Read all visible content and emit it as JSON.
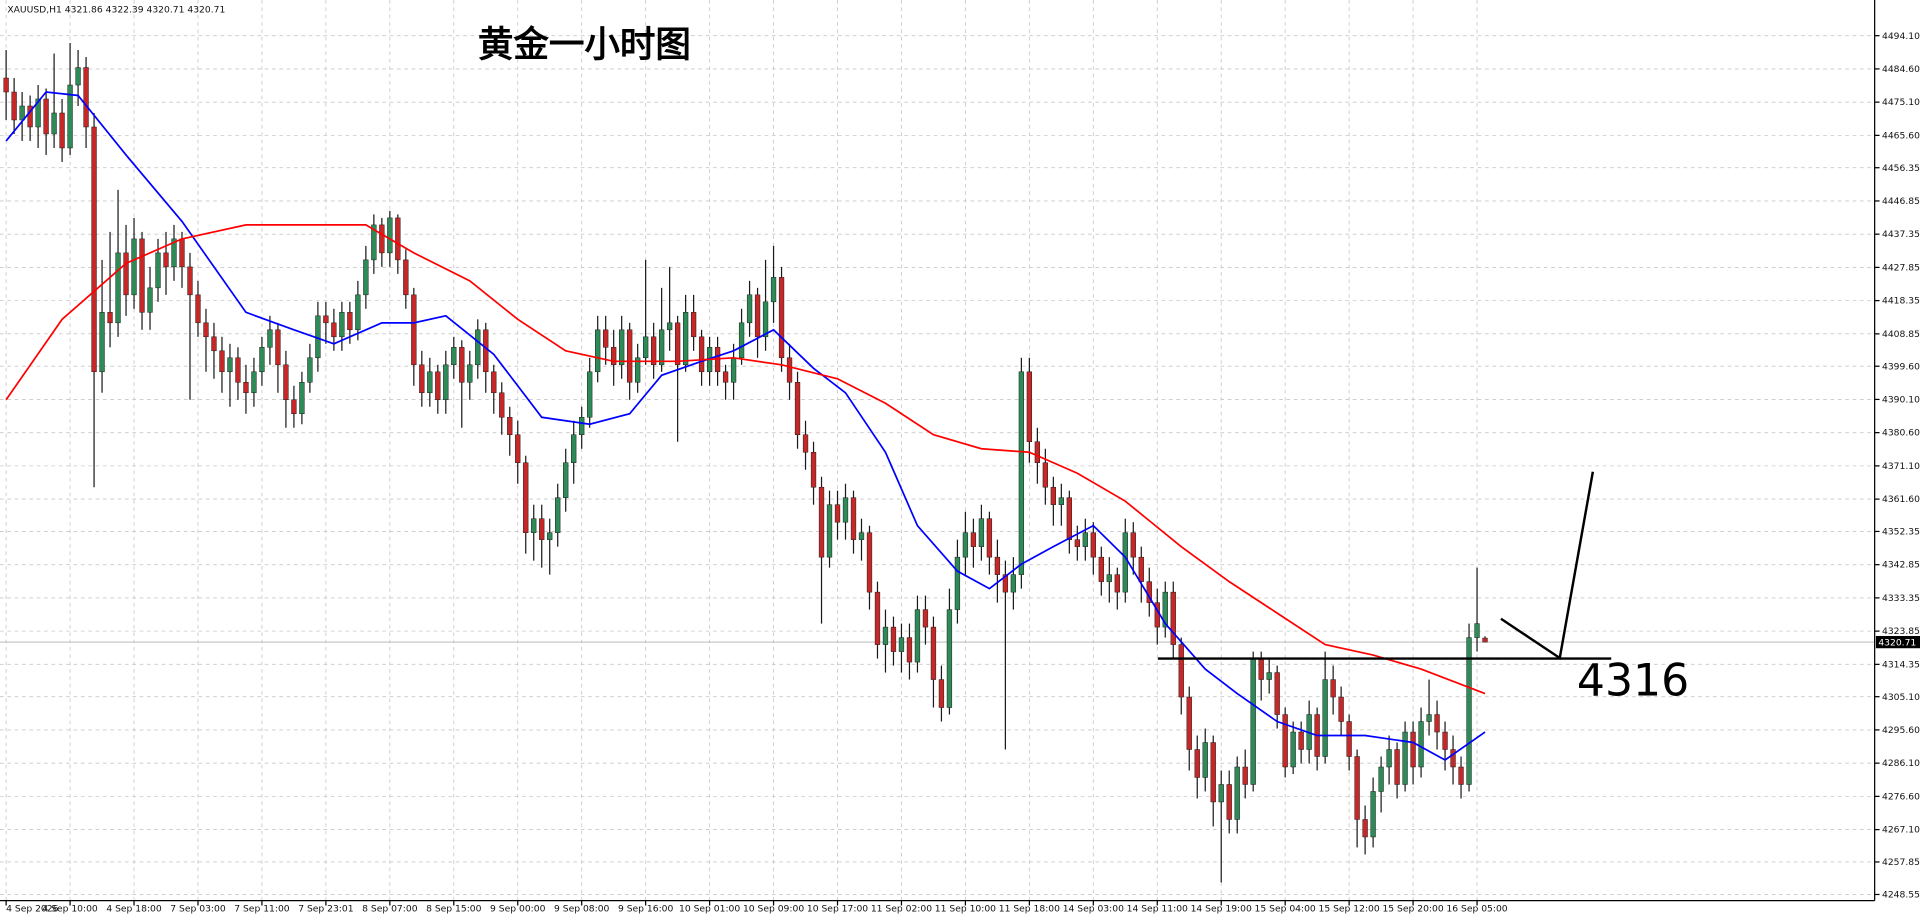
{
  "chart_data": {
    "type": "candlestick",
    "symbol": "XAUUSD,H1",
    "title": "黄金一小时图",
    "up_color": "#2e8b57",
    "down_color": "#c62828",
    "wick_color": "#1a1a1a",
    "grid": true,
    "ylim": [
      4246.8,
      4504.3
    ],
    "yticks": [
      {
        "value": 4494.1,
        "label": "4494.10"
      },
      {
        "value": 4484.6,
        "label": "4484.60"
      },
      {
        "value": 4475.1,
        "label": "4475.10"
      },
      {
        "value": 4465.6,
        "label": "4465.60"
      },
      4456.35,
      4446.85,
      4437.35,
      4427.85,
      4418.35,
      4408.85,
      {
        "value": 4399.6,
        "label": "4399.60"
      },
      {
        "value": 4390.1,
        "label": "4390.10"
      },
      {
        "value": 4380.6,
        "label": "4380.60"
      },
      {
        "value": 4371.1,
        "label": "4371.10"
      },
      {
        "value": 4361.6,
        "label": "4361.60"
      },
      4352.35,
      4342.85,
      4333.35,
      4323.85,
      4314.35,
      {
        "value": 4305.1,
        "label": "4305.10"
      },
      {
        "value": 4295.6,
        "label": "4295.60"
      },
      {
        "value": 4286.1,
        "label": "4286.10"
      },
      {
        "value": 4276.6,
        "label": "4276.60"
      },
      {
        "value": 4267.1,
        "label": "4267.10"
      },
      4257.85,
      4248.55
    ],
    "xticks": [
      {
        "value": 0,
        "label": "4 Sep 2026"
      },
      {
        "value": 8,
        "label": "4 Sep 10:00"
      },
      {
        "value": 16,
        "label": "4 Sep 18:00"
      },
      {
        "value": 24,
        "label": "7 Sep 03:00"
      },
      {
        "value": 32,
        "label": "7 Sep 11:00"
      },
      {
        "value": 40,
        "label": "7 Sep 23:01"
      },
      {
        "value": 48,
        "label": "8 Sep 07:00"
      },
      {
        "value": 56,
        "label": "8 Sep 15:00"
      },
      {
        "value": 64,
        "label": "9 Sep 00:00"
      },
      {
        "value": 72,
        "label": "9 Sep 08:00"
      },
      {
        "value": 80,
        "label": "9 Sep 16:00"
      },
      {
        "value": 88,
        "label": "10 Sep 01:00"
      },
      {
        "value": 96,
        "label": "10 Sep 09:00"
      },
      {
        "value": 104,
        "label": "10 Sep 17:00"
      },
      {
        "value": 112,
        "label": "11 Sep 02:00"
      },
      {
        "value": 120,
        "label": "11 Sep 10:00"
      },
      {
        "value": 128,
        "label": "11 Sep 18:00"
      },
      {
        "value": 136,
        "label": "14 Sep 03:00"
      },
      {
        "value": 144,
        "label": "14 Sep 11:00"
      },
      {
        "value": 152,
        "label": "14 Sep 19:00"
      },
      {
        "value": 160,
        "label": "15 Sep 04:00"
      },
      {
        "value": 168,
        "label": "15 Sep 12:00"
      },
      {
        "value": 176,
        "label": "15 Sep 20:00"
      },
      {
        "value": 184,
        "label": "16 Sep 05:00"
      }
    ],
    "candles": {
      "open": [
        4482,
        4478,
        4470,
        4474,
        4468,
        4476,
        4466,
        4472,
        4462,
        4480,
        4485,
        4468,
        4398,
        4415,
        4412,
        4432,
        4420,
        4436,
        4415,
        4422,
        4432,
        4428,
        4436,
        4428,
        4420,
        4412,
        4408,
        4404,
        4398,
        4402,
        4395,
        4392,
        4398,
        4405,
        4410,
        4400,
        4390,
        4386,
        4395,
        4402,
        4414,
        4412,
        4408,
        4415,
        4410,
        4420,
        4430,
        4440,
        4432,
        4442,
        4430,
        4420,
        4400,
        4392,
        4398,
        4390,
        4400,
        4405,
        4395,
        4400,
        4410,
        4398,
        4392,
        4385,
        4380,
        4372,
        4352,
        4356,
        4350,
        4352,
        4362,
        4372,
        4380,
        4385,
        4398,
        4410,
        4405,
        4400,
        4410,
        4395,
        4402,
        4408,
        4400,
        4410,
        4412,
        4400,
        4415,
        4408,
        4398,
        4405,
        4398,
        4395,
        4402,
        4412,
        4420,
        4408,
        4418,
        4425,
        4402,
        4395,
        4380,
        4375,
        4365,
        4345,
        4360,
        4355,
        4362,
        4350,
        4352,
        4335,
        4320,
        4325,
        4318,
        4322,
        4315,
        4330,
        4325,
        4310,
        4302,
        4330,
        4345,
        4352,
        4348,
        4356,
        4345,
        4340,
        4335,
        4340,
        4398,
        4378,
        4372,
        4365,
        4360,
        4362,
        4350,
        4348,
        4352,
        4345,
        4338,
        4340,
        4335,
        4352,
        4345,
        4338,
        4332,
        4325,
        4335,
        4320,
        4305,
        4290,
        4282,
        4292,
        4275,
        4280,
        4270,
        4285,
        4280,
        4316,
        4310,
        4312,
        4300,
        4285,
        4295,
        4290,
        4300,
        4288,
        4310,
        4305,
        4298,
        4288,
        4270,
        4265,
        4278,
        4285,
        4290,
        4280,
        4295,
        4285,
        4298,
        4300,
        4295,
        4290,
        4285,
        4280,
        4322,
        4321.86
      ],
      "high": [
        4490,
        4482,
        4478,
        4477,
        4480,
        4479,
        4489,
        4476,
        4492,
        4490,
        4488,
        4472,
        4430,
        4438,
        4450,
        4440,
        4442,
        4438,
        4428,
        4436,
        4438,
        4440,
        4438,
        4432,
        4424,
        4416,
        4412,
        4408,
        4406,
        4405,
        4400,
        4402,
        4408,
        4414,
        4412,
        4404,
        4394,
        4398,
        4406,
        4418,
        4418,
        4416,
        4418,
        4418,
        4424,
        4434,
        4443,
        4442,
        4444,
        4443,
        4433,
        4422,
        4404,
        4402,
        4400,
        4404,
        4408,
        4407,
        4404,
        4413,
        4412,
        4400,
        4395,
        4388,
        4384,
        4374,
        4360,
        4360,
        4356,
        4366,
        4376,
        4384,
        4388,
        4402,
        4414,
        4414,
        4410,
        4414,
        4412,
        4406,
        4430,
        4412,
        4422,
        4428,
        4414,
        4420,
        4420,
        4410,
        4408,
        4408,
        4400,
        4406,
        4416,
        4424,
        4422,
        4430,
        4434,
        4428,
        4406,
        4398,
        4384,
        4378,
        4368,
        4364,
        4364,
        4366,
        4364,
        4356,
        4354,
        4338,
        4330,
        4328,
        4326,
        4326,
        4334,
        4334,
        4328,
        4314,
        4336,
        4350,
        4358,
        4356,
        4360,
        4358,
        4350,
        4344,
        4345,
        4402,
        4402,
        4382,
        4376,
        4368,
        4366,
        4364,
        4354,
        4356,
        4355,
        4348,
        4345,
        4342,
        4356,
        4355,
        4348,
        4342,
        4336,
        4338,
        4338,
        4322,
        4308,
        4294,
        4296,
        4294,
        4284,
        4284,
        4288,
        4290,
        4318,
        4318,
        4316,
        4314,
        4302,
        4298,
        4298,
        4304,
        4302,
        4318,
        4314,
        4308,
        4300,
        4290,
        4274,
        4282,
        4288,
        4294,
        4292,
        4298,
        4298,
        4302,
        4310,
        4304,
        4298,
        4294,
        4288,
        4326,
        4342,
        4322.39
      ],
      "low": [
        4470,
        4466,
        4464,
        4464,
        4462,
        4460,
        4462,
        4458,
        4460,
        4474,
        4462,
        4365,
        4392,
        4405,
        4408,
        4414,
        4416,
        4410,
        4410,
        4418,
        4420,
        4424,
        4422,
        4390,
        4408,
        4398,
        4396,
        4392,
        4388,
        4390,
        4386,
        4388,
        4394,
        4400,
        4392,
        4382,
        4382,
        4383,
        4392,
        4398,
        4406,
        4404,
        4404,
        4406,
        4407,
        4416,
        4426,
        4428,
        4428,
        4426,
        4416,
        4394,
        4388,
        4388,
        4386,
        4386,
        4396,
        4382,
        4390,
        4396,
        4392,
        4386,
        4380,
        4374,
        4366,
        4346,
        4344,
        4342,
        4340,
        4348,
        4358,
        4366,
        4376,
        4382,
        4395,
        4400,
        4394,
        4396,
        4390,
        4392,
        4400,
        4396,
        4398,
        4404,
        4378,
        4398,
        4404,
        4394,
        4394,
        4394,
        4390,
        4390,
        4400,
        4408,
        4402,
        4404,
        4412,
        4398,
        4390,
        4376,
        4370,
        4360,
        4326,
        4342,
        4350,
        4350,
        4346,
        4344,
        4330,
        4316,
        4312,
        4314,
        4312,
        4310,
        4312,
        4320,
        4302,
        4298,
        4300,
        4326,
        4340,
        4342,
        4344,
        4340,
        4332,
        4290,
        4330,
        4336,
        4372,
        4366,
        4360,
        4354,
        4354,
        4346,
        4344,
        4344,
        4340,
        4334,
        4332,
        4330,
        4332,
        4340,
        4332,
        4328,
        4320,
        4322,
        4316,
        4300,
        4284,
        4276,
        4278,
        4268,
        4252,
        4266,
        4266,
        4276,
        4278,
        4304,
        4306,
        4296,
        4282,
        4283,
        4286,
        4286,
        4284,
        4286,
        4300,
        4294,
        4284,
        4262,
        4260,
        4262,
        4272,
        4280,
        4276,
        4278,
        4280,
        4282,
        4294,
        4290,
        4284,
        4280,
        4276,
        4278,
        4318,
        4320.71
      ],
      "close": [
        4478,
        4470,
        4474,
        4468,
        4476,
        4466,
        4472,
        4462,
        4480,
        4485,
        4468,
        4398,
        4415,
        4412,
        4432,
        4420,
        4436,
        4415,
        4422,
        4432,
        4428,
        4436,
        4428,
        4420,
        4412,
        4408,
        4404,
        4398,
        4402,
        4395,
        4392,
        4398,
        4405,
        4410,
        4400,
        4390,
        4386,
        4395,
        4402,
        4414,
        4412,
        4408,
        4415,
        4410,
        4420,
        4430,
        4440,
        4432,
        4442,
        4430,
        4420,
        4400,
        4392,
        4398,
        4390,
        4400,
        4405,
        4395,
        4400,
        4410,
        4398,
        4392,
        4385,
        4380,
        4372,
        4352,
        4356,
        4350,
        4352,
        4362,
        4372,
        4380,
        4385,
        4398,
        4410,
        4405,
        4400,
        4410,
        4395,
        4402,
        4408,
        4400,
        4410,
        4412,
        4400,
        4415,
        4408,
        4398,
        4405,
        4398,
        4395,
        4402,
        4412,
        4420,
        4408,
        4418,
        4425,
        4402,
        4395,
        4380,
        4375,
        4365,
        4345,
        4360,
        4355,
        4362,
        4350,
        4352,
        4335,
        4320,
        4325,
        4318,
        4322,
        4315,
        4330,
        4325,
        4310,
        4302,
        4330,
        4345,
        4352,
        4348,
        4356,
        4345,
        4340,
        4335,
        4340,
        4398,
        4378,
        4372,
        4365,
        4360,
        4362,
        4350,
        4348,
        4352,
        4345,
        4338,
        4340,
        4335,
        4352,
        4345,
        4338,
        4332,
        4325,
        4335,
        4320,
        4305,
        4290,
        4282,
        4292,
        4275,
        4280,
        4270,
        4285,
        4280,
        4316,
        4310,
        4312,
        4300,
        4285,
        4295,
        4290,
        4300,
        4288,
        4310,
        4305,
        4298,
        4288,
        4270,
        4265,
        4278,
        4285,
        4290,
        4280,
        4295,
        4285,
        4298,
        4300,
        4295,
        4290,
        4285,
        4280,
        4322,
        4326,
        4320.71
      ]
    },
    "lines": [
      {
        "color": "#0000ff",
        "x": [
          0,
          5,
          9,
          15,
          22,
          30,
          36,
          41,
          47,
          51,
          55,
          61,
          67,
          73,
          78,
          82,
          87,
          91,
          96,
          101,
          105,
          110,
          114,
          119,
          123,
          127,
          131,
          136,
          140,
          145,
          150,
          154,
          159,
          164,
          170,
          176,
          180,
          185
        ],
        "values": [
          4464,
          4478,
          4477,
          4460,
          4441,
          4415,
          4410,
          4406,
          4412,
          4412,
          4414,
          4403,
          4385,
          4383,
          4386,
          4397,
          4401,
          4404,
          4410,
          4399,
          4392,
          4375,
          4354,
          4341,
          4336,
          4343,
          4348,
          4354,
          4345,
          4326,
          4313,
          4306,
          4298,
          4294,
          4294,
          4292,
          4287,
          4295
        ]
      },
      {
        "color": "#ff0000",
        "x": [
          0,
          7,
          15,
          22,
          30,
          38,
          45,
          51,
          58,
          64,
          70,
          76,
          84,
          91,
          97,
          104,
          110,
          116,
          122,
          128,
          134,
          140,
          147,
          153,
          159,
          165,
          171,
          177,
          185
        ],
        "values": [
          4390,
          4413,
          4429,
          4436,
          4440,
          4440,
          4440,
          4432,
          4424,
          4413,
          4404,
          4401,
          4401,
          4402,
          4400,
          4396,
          4389,
          4380,
          4376,
          4375,
          4369,
          4361,
          4348,
          4338,
          4329,
          4320,
          4317,
          4313,
          4306
        ]
      }
    ],
    "hline": 4316
  }
}
